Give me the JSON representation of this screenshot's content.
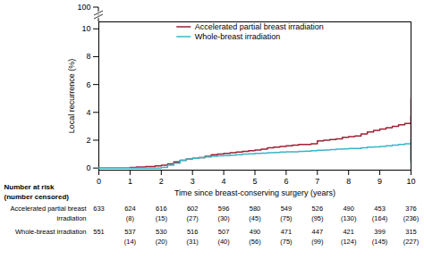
{
  "chart_data": {
    "type": "step",
    "xlabel": "Time since breast-conserving surgery (years)",
    "ylabel": "Local recurrence (%)",
    "xlim": [
      0,
      10
    ],
    "xticks": [
      0,
      1,
      2,
      3,
      4,
      5,
      6,
      7,
      8,
      9,
      10
    ],
    "ylim": [
      -0.15,
      10.5
    ],
    "yticks": [
      0,
      2,
      4,
      6,
      8,
      10
    ],
    "legend": "upper left",
    "annotations": [
      {
        "text": "100"
      }
    ],
    "series": [
      {
        "name": "Accelerated partial breast irradiation",
        "color": "#9b2335",
        "x": [
          0,
          0.5,
          1.0,
          1.2,
          1.5,
          1.8,
          2.0,
          2.2,
          2.4,
          2.6,
          2.8,
          3.0,
          3.2,
          3.4,
          3.6,
          3.8,
          4.0,
          4.2,
          4.4,
          4.6,
          4.8,
          5.0,
          5.2,
          5.4,
          5.6,
          5.8,
          6.0,
          6.2,
          6.4,
          6.8,
          7.0,
          7.2,
          7.4,
          7.6,
          7.8,
          8.0,
          8.2,
          8.4,
          8.6,
          8.8,
          9.0,
          9.2,
          9.4,
          9.6,
          9.8,
          10.0
        ],
        "values": [
          0,
          0,
          0.05,
          0.08,
          0.1,
          0.15,
          0.2,
          0.3,
          0.45,
          0.55,
          0.65,
          0.7,
          0.75,
          0.85,
          0.95,
          1.0,
          1.05,
          1.1,
          1.15,
          1.2,
          1.25,
          1.3,
          1.35,
          1.45,
          1.5,
          1.55,
          1.6,
          1.65,
          1.7,
          1.75,
          1.95,
          2.0,
          2.05,
          2.1,
          2.2,
          2.25,
          2.3,
          2.45,
          2.6,
          2.7,
          2.8,
          2.9,
          3.0,
          3.1,
          3.2,
          3.7
        ],
        "ci": {
          "x": 10.0,
          "low": 0.5,
          "high": 5.0
        }
      },
      {
        "name": "Whole-breast irradiation",
        "color": "#3ab5c6",
        "x": [
          0,
          0.5,
          1.0,
          1.5,
          1.8,
          2.0,
          2.2,
          2.4,
          2.6,
          2.8,
          3.0,
          3.2,
          3.4,
          3.6,
          3.8,
          4.0,
          4.2,
          4.4,
          4.6,
          4.8,
          5.0,
          5.2,
          5.4,
          5.6,
          5.8,
          6.0,
          6.2,
          6.4,
          6.6,
          6.8,
          7.0,
          7.2,
          7.4,
          7.6,
          7.8,
          8.0,
          8.4,
          8.6,
          8.8,
          9.0,
          9.2,
          9.4,
          9.6,
          9.8,
          10.0
        ],
        "values": [
          0,
          0,
          0,
          0,
          0.0,
          0.05,
          0.2,
          0.35,
          0.55,
          0.65,
          0.7,
          0.75,
          0.8,
          0.85,
          0.87,
          0.9,
          0.92,
          0.95,
          1.0,
          1.02,
          1.05,
          1.07,
          1.1,
          1.12,
          1.15,
          1.17,
          1.17,
          1.2,
          1.22,
          1.25,
          1.28,
          1.3,
          1.32,
          1.35,
          1.38,
          1.4,
          1.45,
          1.5,
          1.52,
          1.55,
          1.6,
          1.65,
          1.7,
          1.75,
          1.8
        ],
        "ci": {
          "x": 10.0,
          "low": 0.3,
          "high": 2.1
        }
      }
    ],
    "number_at_risk": {
      "header": [
        "Number at risk",
        "(number censored)"
      ],
      "times": [
        0,
        1,
        2,
        3,
        4,
        5,
        6,
        7,
        8,
        9,
        10
      ],
      "rows": [
        {
          "label": [
            "Accelerated partial breast",
            "irradiation"
          ],
          "at_risk": [
            633,
            624,
            616,
            602,
            596,
            580,
            549,
            526,
            490,
            453,
            376
          ],
          "censored": [
            null,
            "(8)",
            "(15)",
            "(27)",
            "(30)",
            "(45)",
            "(75)",
            "(95)",
            "(130)",
            "(164)",
            "(236)"
          ]
        },
        {
          "label": [
            "Whole-breast irradiation"
          ],
          "at_risk": [
            551,
            537,
            530,
            516,
            507,
            490,
            471,
            447,
            421,
            399,
            315
          ],
          "censored": [
            null,
            "(14)",
            "(20)",
            "(31)",
            "(40)",
            "(56)",
            "(75)",
            "(99)",
            "(124)",
            "(145)",
            "(227)"
          ]
        }
      ]
    }
  }
}
